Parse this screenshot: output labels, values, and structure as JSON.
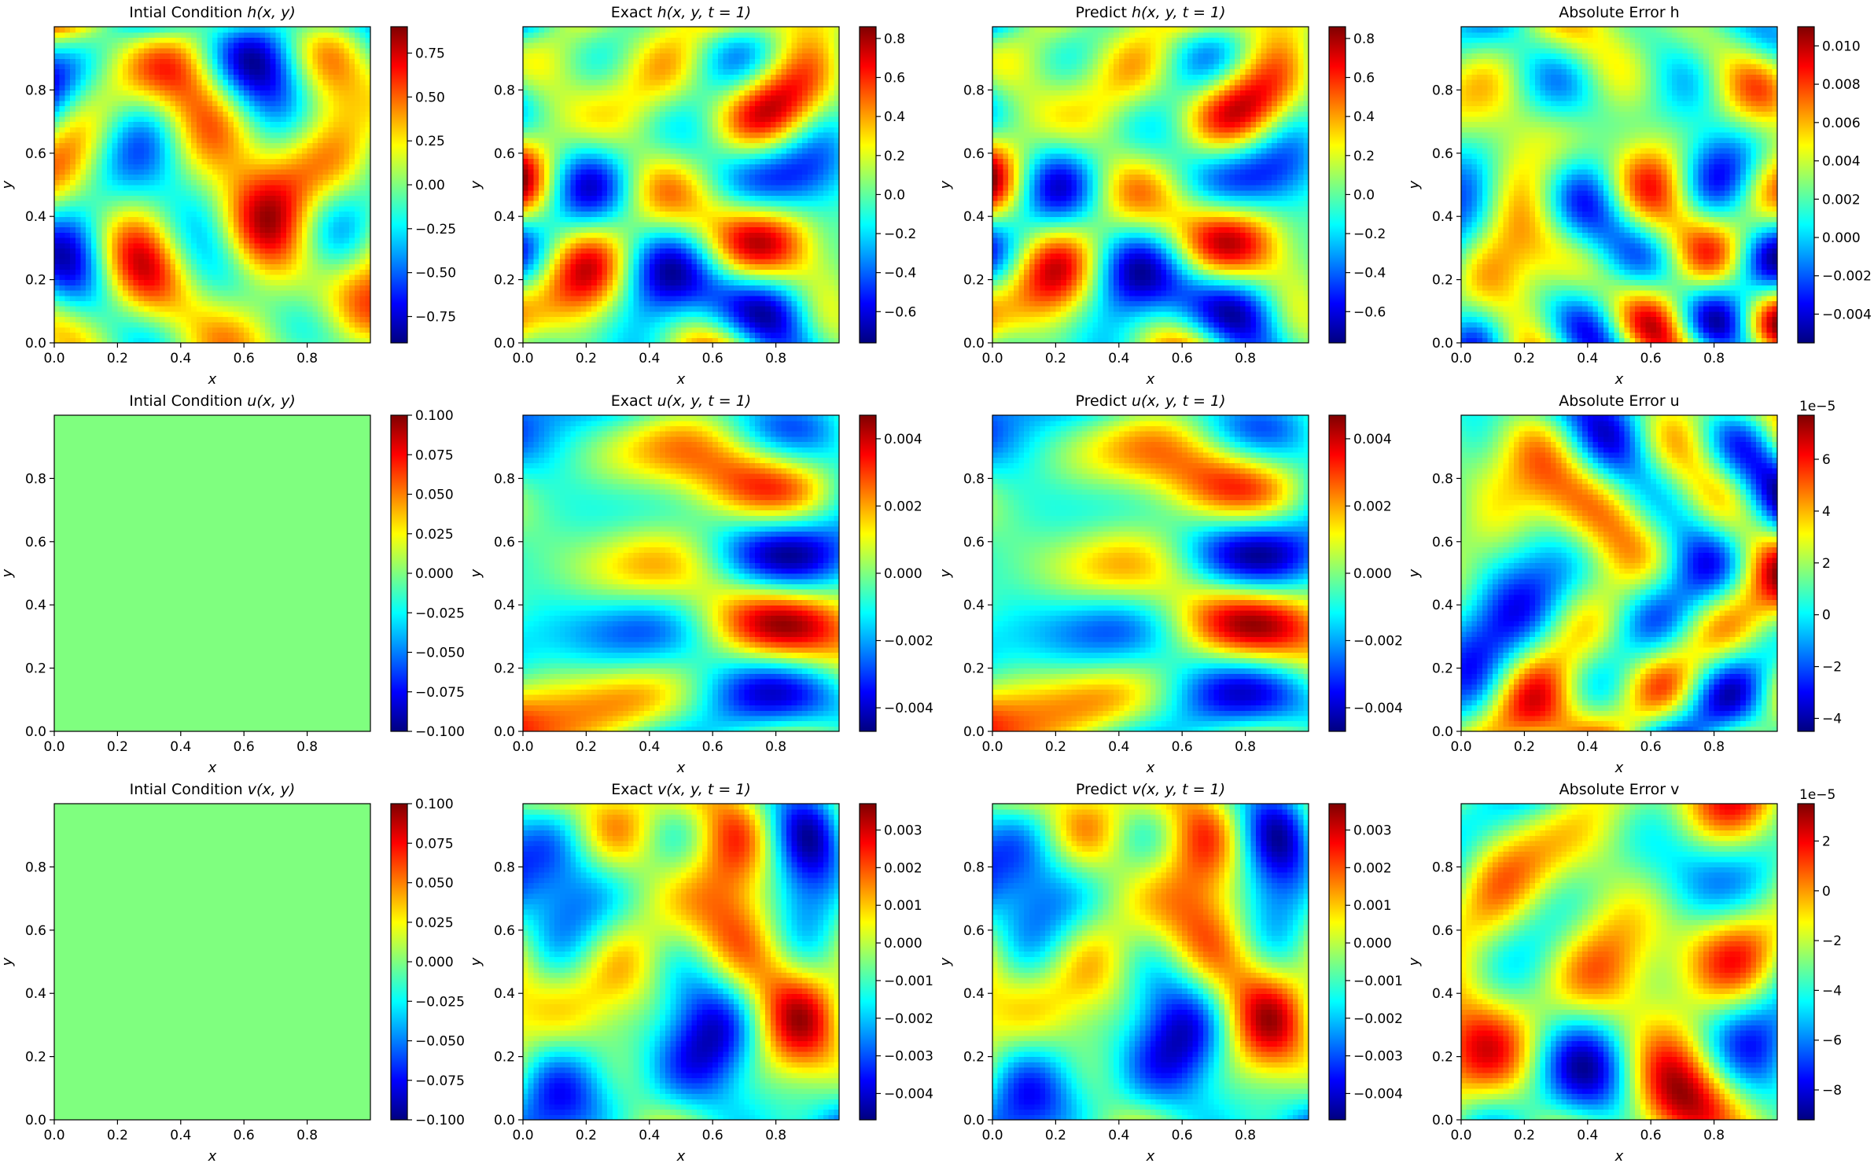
{
  "figure": {
    "axis_x_label": "x",
    "axis_y_label": "y",
    "colormap": "jet",
    "colormap_stops": [
      "#00007f",
      "#0000ff",
      "#007fff",
      "#00ffff",
      "#7fff7f",
      "#ffff00",
      "#ff7f00",
      "#ff0000",
      "#7f0000"
    ]
  },
  "chart_data": [
    {
      "type": "heatmap",
      "title": "Intial Condition h(x, y)",
      "title_parts": {
        "prefix": "Intial Condition ",
        "func": "h",
        "args": "(x, y)"
      },
      "xlabel": "x",
      "ylabel": "y",
      "xlim": [
        0,
        1
      ],
      "ylim": [
        0,
        1
      ],
      "xticks": [
        "0.0",
        "0.2",
        "0.4",
        "0.6",
        "0.8"
      ],
      "yticks": [
        "0.0",
        "0.2",
        "0.4",
        "0.6",
        "0.8"
      ],
      "colorbar": {
        "min": -0.9,
        "max": 0.9,
        "ticks": [
          0.75,
          0.5,
          0.25,
          0.0,
          -0.25,
          -0.5,
          -0.75
        ],
        "tick_labels": [
          "0.75",
          "0.50",
          "0.25",
          "0.00",
          "−0.25",
          "−0.50",
          "−0.75"
        ]
      },
      "field": {
        "seed": 11,
        "scale": 0.9,
        "constant": null
      }
    },
    {
      "type": "heatmap",
      "title": "Exact h(x, y, t = 1)",
      "title_parts": {
        "prefix": "Exact ",
        "func": "h",
        "args": "(x, y, t = 1)"
      },
      "xlabel": "x",
      "ylabel": "y",
      "xlim": [
        0,
        1
      ],
      "ylim": [
        0,
        1
      ],
      "xticks": [
        "0.0",
        "0.2",
        "0.4",
        "0.6",
        "0.8"
      ],
      "yticks": [
        "0.0",
        "0.2",
        "0.4",
        "0.6",
        "0.8"
      ],
      "colorbar": {
        "min": -0.76,
        "max": 0.86,
        "ticks": [
          0.8,
          0.6,
          0.4,
          0.2,
          0.0,
          -0.2,
          -0.4,
          -0.6
        ],
        "tick_labels": [
          "0.8",
          "0.6",
          "0.4",
          "0.2",
          "0.0",
          "−0.2",
          "−0.4",
          "−0.6"
        ]
      },
      "field": {
        "seed": 23,
        "scale": 0.86,
        "constant": null
      }
    },
    {
      "type": "heatmap",
      "title": "Predict h(x, y, t = 1)",
      "title_parts": {
        "prefix": "Predict ",
        "func": "h",
        "args": "(x, y, t = 1)"
      },
      "xlabel": "x",
      "ylabel": "y",
      "xlim": [
        0,
        1
      ],
      "ylim": [
        0,
        1
      ],
      "xticks": [
        "0.0",
        "0.2",
        "0.4",
        "0.6",
        "0.8"
      ],
      "yticks": [
        "0.0",
        "0.2",
        "0.4",
        "0.6",
        "0.8"
      ],
      "colorbar": {
        "min": -0.76,
        "max": 0.86,
        "ticks": [
          0.8,
          0.6,
          0.4,
          0.2,
          0.0,
          -0.2,
          -0.4,
          -0.6
        ],
        "tick_labels": [
          "0.8",
          "0.6",
          "0.4",
          "0.2",
          "0.0",
          "−0.2",
          "−0.4",
          "−0.6"
        ]
      },
      "field": {
        "seed": 23,
        "scale": 0.86,
        "constant": null
      }
    },
    {
      "type": "heatmap",
      "title": "Absolute Error h",
      "title_parts": {
        "prefix": "Absolute Error h",
        "func": "",
        "args": ""
      },
      "xlabel": "x",
      "ylabel": "y",
      "xlim": [
        0,
        1
      ],
      "ylim": [
        0,
        1
      ],
      "xticks": [
        "0.0",
        "0.2",
        "0.4",
        "0.6",
        "0.8"
      ],
      "yticks": [
        "0.0",
        "0.2",
        "0.4",
        "0.6",
        "0.8"
      ],
      "colorbar": {
        "min": -0.0055,
        "max": 0.011,
        "ticks": [
          0.01,
          0.008,
          0.006,
          0.004,
          0.002,
          0.0,
          -0.002,
          -0.004
        ],
        "tick_labels": [
          "0.010",
          "0.008",
          "0.006",
          "0.004",
          "0.002",
          "0.000",
          "−0.002",
          "−0.004"
        ]
      },
      "field": {
        "seed": 37,
        "scale": 1.0,
        "constant": null
      }
    },
    {
      "type": "heatmap",
      "title": "Intial Condition u(x, y)",
      "title_parts": {
        "prefix": "Intial Condition ",
        "func": "u",
        "args": "(x, y)"
      },
      "xlabel": "x",
      "ylabel": "y",
      "xlim": [
        0,
        1
      ],
      "ylim": [
        0,
        1
      ],
      "xticks": [
        "0.0",
        "0.2",
        "0.4",
        "0.6",
        "0.8"
      ],
      "yticks": [
        "0.0",
        "0.2",
        "0.4",
        "0.6",
        "0.8"
      ],
      "colorbar": {
        "min": -0.1,
        "max": 0.1,
        "ticks": [
          0.1,
          0.075,
          0.05,
          0.025,
          0.0,
          -0.025,
          -0.05,
          -0.075,
          -0.1
        ],
        "tick_labels": [
          "0.100",
          "0.075",
          "0.050",
          "0.025",
          "0.000",
          "−0.025",
          "−0.050",
          "−0.075",
          "−0.100"
        ]
      },
      "field": {
        "seed": 0,
        "scale": 0,
        "constant": 0.0
      }
    },
    {
      "type": "heatmap",
      "title": "Exact u(x, y, t = 1)",
      "title_parts": {
        "prefix": "Exact ",
        "func": "u",
        "args": "(x, y, t = 1)"
      },
      "xlabel": "x",
      "ylabel": "y",
      "xlim": [
        0,
        1
      ],
      "ylim": [
        0,
        1
      ],
      "xticks": [
        "0.0",
        "0.2",
        "0.4",
        "0.6",
        "0.8"
      ],
      "yticks": [
        "0.0",
        "0.2",
        "0.4",
        "0.6",
        "0.8"
      ],
      "colorbar": {
        "min": -0.0047,
        "max": 0.0047,
        "ticks": [
          0.004,
          0.002,
          0.0,
          -0.002,
          -0.004
        ],
        "tick_labels": [
          "0.004",
          "0.002",
          "0.000",
          "−0.002",
          "−0.004"
        ]
      },
      "field": {
        "seed": 51,
        "scale": 0.0047,
        "constant": null
      }
    },
    {
      "type": "heatmap",
      "title": "Predict u(x, y, t = 1)",
      "title_parts": {
        "prefix": "Predict ",
        "func": "u",
        "args": "(x, y, t = 1)"
      },
      "xlabel": "x",
      "ylabel": "y",
      "xlim": [
        0,
        1
      ],
      "ylim": [
        0,
        1
      ],
      "xticks": [
        "0.0",
        "0.2",
        "0.4",
        "0.6",
        "0.8"
      ],
      "yticks": [
        "0.0",
        "0.2",
        "0.4",
        "0.6",
        "0.8"
      ],
      "colorbar": {
        "min": -0.0047,
        "max": 0.0047,
        "ticks": [
          0.004,
          0.002,
          0.0,
          -0.002,
          -0.004
        ],
        "tick_labels": [
          "0.004",
          "0.002",
          "0.000",
          "−0.002",
          "−0.004"
        ]
      },
      "field": {
        "seed": 51,
        "scale": 0.0047,
        "constant": null
      }
    },
    {
      "type": "heatmap",
      "title": "Absolute Error u",
      "title_parts": {
        "prefix": "Absolute Error u",
        "func": "",
        "args": ""
      },
      "xlabel": "x",
      "ylabel": "y",
      "xlim": [
        0,
        1
      ],
      "ylim": [
        0,
        1
      ],
      "xticks": [
        "0.0",
        "0.2",
        "0.4",
        "0.6",
        "0.8"
      ],
      "yticks": [
        "0.0",
        "0.2",
        "0.4",
        "0.6",
        "0.8"
      ],
      "colorbar": {
        "min": -4.5,
        "max": 7.7,
        "ticks": [
          6,
          4,
          2,
          0,
          -2,
          -4
        ],
        "tick_labels": [
          "6",
          "4",
          "2",
          "0",
          "−2",
          "−4"
        ],
        "offset_text": "1e−5"
      },
      "field": {
        "seed": 67,
        "scale": 1.0,
        "constant": null
      }
    },
    {
      "type": "heatmap",
      "title": "Intial Condition v(x, y)",
      "title_parts": {
        "prefix": "Intial Condition ",
        "func": "v",
        "args": "(x, y)"
      },
      "xlabel": "x",
      "ylabel": "y",
      "xlim": [
        0,
        1
      ],
      "ylim": [
        0,
        1
      ],
      "xticks": [
        "0.0",
        "0.2",
        "0.4",
        "0.6",
        "0.8"
      ],
      "yticks": [
        "0.0",
        "0.2",
        "0.4",
        "0.6",
        "0.8"
      ],
      "colorbar": {
        "min": -0.1,
        "max": 0.1,
        "ticks": [
          0.1,
          0.075,
          0.05,
          0.025,
          0.0,
          -0.025,
          -0.05,
          -0.075,
          -0.1
        ],
        "tick_labels": [
          "0.100",
          "0.075",
          "0.050",
          "0.025",
          "0.000",
          "−0.025",
          "−0.050",
          "−0.075",
          "−0.100"
        ]
      },
      "field": {
        "seed": 0,
        "scale": 0,
        "constant": 0.0
      }
    },
    {
      "type": "heatmap",
      "title": "Exact v(x, y, t = 1)",
      "title_parts": {
        "prefix": "Exact ",
        "func": "v",
        "args": "(x, y, t = 1)"
      },
      "xlabel": "x",
      "ylabel": "y",
      "xlim": [
        0,
        1
      ],
      "ylim": [
        0,
        1
      ],
      "xticks": [
        "0.0",
        "0.2",
        "0.4",
        "0.6",
        "0.8"
      ],
      "yticks": [
        "0.0",
        "0.2",
        "0.4",
        "0.6",
        "0.8"
      ],
      "colorbar": {
        "min": -0.0047,
        "max": 0.0037,
        "ticks": [
          0.003,
          0.002,
          0.001,
          0.0,
          -0.001,
          -0.002,
          -0.003,
          -0.004
        ],
        "tick_labels": [
          "0.003",
          "0.002",
          "0.001",
          "0.000",
          "−0.001",
          "−0.002",
          "−0.003",
          "−0.004"
        ]
      },
      "field": {
        "seed": 83,
        "scale": 0.0042,
        "constant": null
      }
    },
    {
      "type": "heatmap",
      "title": "Predict v(x, y, t = 1)",
      "title_parts": {
        "prefix": "Predict ",
        "func": "v",
        "args": "(x, y, t = 1)"
      },
      "xlabel": "x",
      "ylabel": "y",
      "xlim": [
        0,
        1
      ],
      "ylim": [
        0,
        1
      ],
      "xticks": [
        "0.0",
        "0.2",
        "0.4",
        "0.6",
        "0.8"
      ],
      "yticks": [
        "0.0",
        "0.2",
        "0.4",
        "0.6",
        "0.8"
      ],
      "colorbar": {
        "min": -0.0047,
        "max": 0.0037,
        "ticks": [
          0.003,
          0.002,
          0.001,
          0.0,
          -0.001,
          -0.002,
          -0.003,
          -0.004
        ],
        "tick_labels": [
          "0.003",
          "0.002",
          "0.001",
          "0.000",
          "−0.001",
          "−0.002",
          "−0.003",
          "−0.004"
        ]
      },
      "field": {
        "seed": 83,
        "scale": 0.0042,
        "constant": null
      }
    },
    {
      "type": "heatmap",
      "title": "Absolute Error v",
      "title_parts": {
        "prefix": "Absolute Error v",
        "func": "",
        "args": ""
      },
      "xlabel": "x",
      "ylabel": "y",
      "xlim": [
        0,
        1
      ],
      "ylim": [
        0,
        1
      ],
      "xticks": [
        "0.0",
        "0.2",
        "0.4",
        "0.6",
        "0.8"
      ],
      "yticks": [
        "0.0",
        "0.2",
        "0.4",
        "0.6",
        "0.8"
      ],
      "colorbar": {
        "min": -9.2,
        "max": 3.5,
        "ticks": [
          2,
          0,
          -2,
          -4,
          -6,
          -8
        ],
        "tick_labels": [
          "2",
          "0",
          "−2",
          "−4",
          "−6",
          "−8"
        ],
        "offset_text": "1e−5"
      },
      "field": {
        "seed": 97,
        "scale": 1.0,
        "constant": null
      }
    }
  ]
}
